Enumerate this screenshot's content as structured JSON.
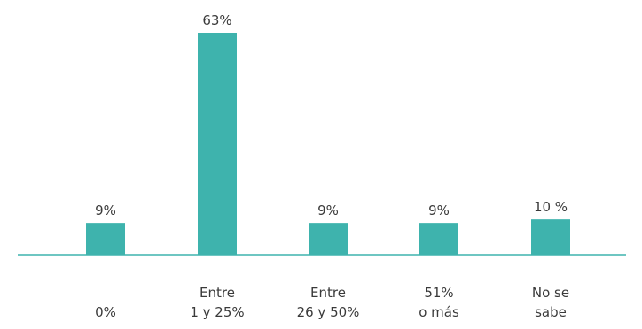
{
  "chart_data": {
    "type": "bar",
    "categories": [
      [
        "0%"
      ],
      [
        "Entre",
        "1 y 25%"
      ],
      [
        "Entre",
        "26 y 50%"
      ],
      [
        "51%",
        "o más"
      ],
      [
        "No se",
        "sabe"
      ]
    ],
    "values": [
      9,
      63,
      9,
      9,
      10
    ],
    "value_labels": [
      "9%",
      "63%",
      "9%",
      "9%",
      "10 %"
    ],
    "unit": "%",
    "ylim": [
      0,
      63
    ],
    "grid": false,
    "legend": "none",
    "colors": {
      "bar": "#3eb3ad",
      "baseline": "#3eb3ad",
      "text": "#3a3a3a"
    }
  }
}
